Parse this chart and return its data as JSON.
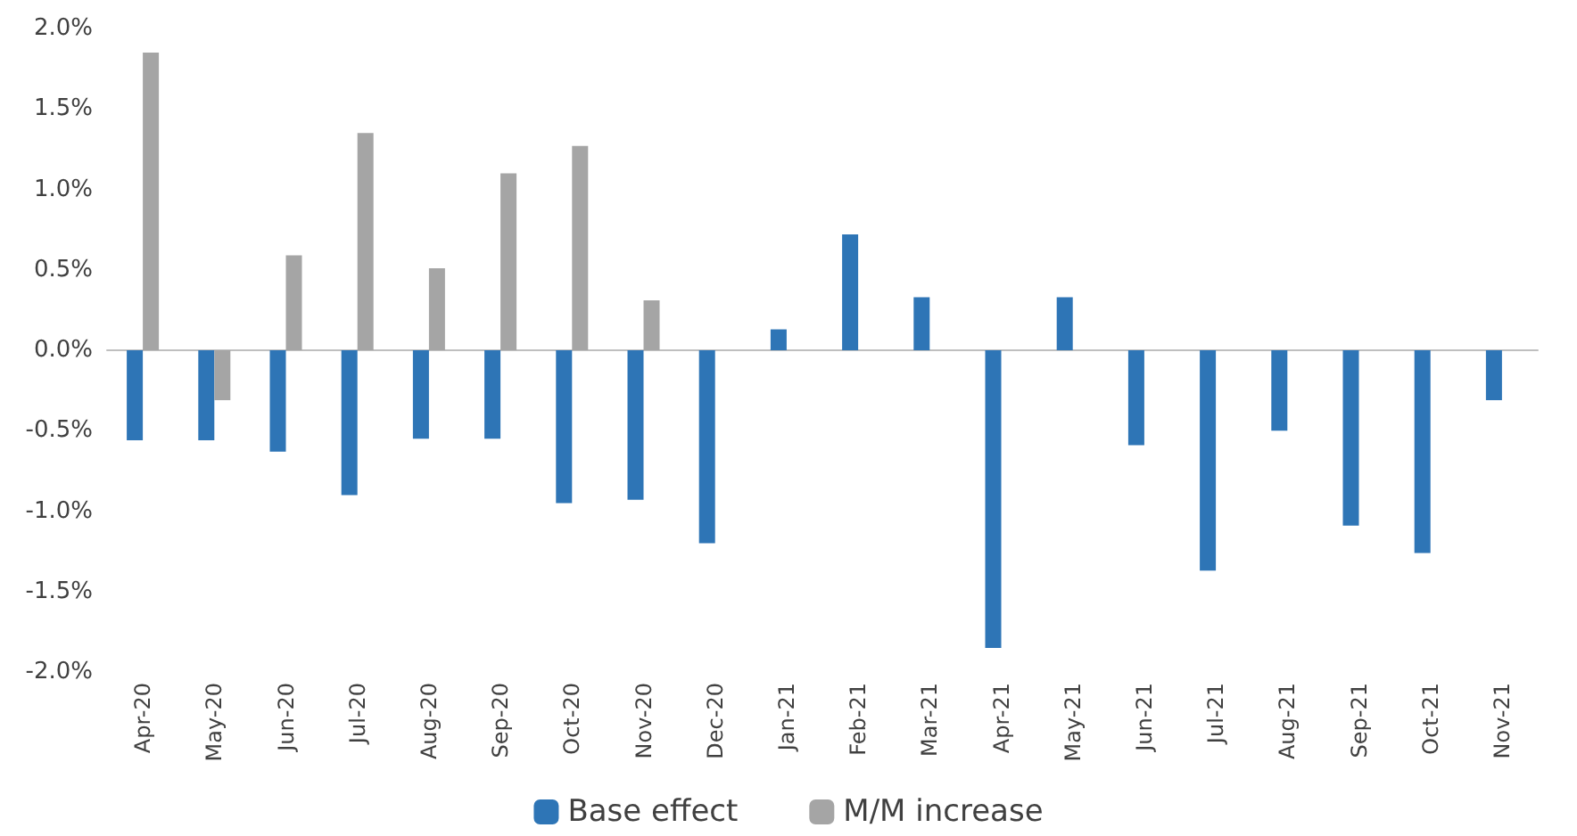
{
  "chart_data": {
    "type": "bar",
    "categories": [
      "Apr-20",
      "May-20",
      "Jun-20",
      "Jul-20",
      "Aug-20",
      "Sep-20",
      "Oct-20",
      "Nov-20",
      "Dec-20",
      "Jan-21",
      "Feb-21",
      "Mar-21",
      "Apr-21",
      "May-21",
      "Jun-21",
      "Jul-21",
      "Aug-21",
      "Sep-21",
      "Oct-21",
      "Nov-21"
    ],
    "series": [
      {
        "name": "Base effect",
        "color": "#2e75b6",
        "values": [
          -0.56,
          -0.56,
          -0.63,
          -0.9,
          -0.55,
          -0.55,
          -0.95,
          -0.93,
          -1.2,
          0.13,
          0.72,
          0.33,
          -1.85,
          0.33,
          -0.59,
          -1.37,
          -0.5,
          -1.09,
          -1.26,
          -0.31
        ]
      },
      {
        "name": "M/M increase",
        "color": "#a5a5a5",
        "values": [
          1.85,
          -0.31,
          0.59,
          1.35,
          0.51,
          1.1,
          1.27,
          0.31,
          null,
          null,
          null,
          null,
          null,
          null,
          null,
          null,
          null,
          null,
          null,
          null
        ]
      }
    ],
    "ylim": [
      -2,
      2
    ],
    "yticks": [
      {
        "value": -2,
        "label": "-2.0%"
      },
      {
        "value": -1.5,
        "label": "-1.5%"
      },
      {
        "value": -1,
        "label": "-1.0%"
      },
      {
        "value": -0.5,
        "label": "-0.5%"
      },
      {
        "value": 0,
        "label": "0.0%"
      },
      {
        "value": 0.5,
        "label": "0.5%"
      },
      {
        "value": 1,
        "label": "1.0%"
      },
      {
        "value": 1.5,
        "label": "1.5%"
      },
      {
        "value": 2,
        "label": "2.0%"
      }
    ],
    "legend": "bottom"
  }
}
